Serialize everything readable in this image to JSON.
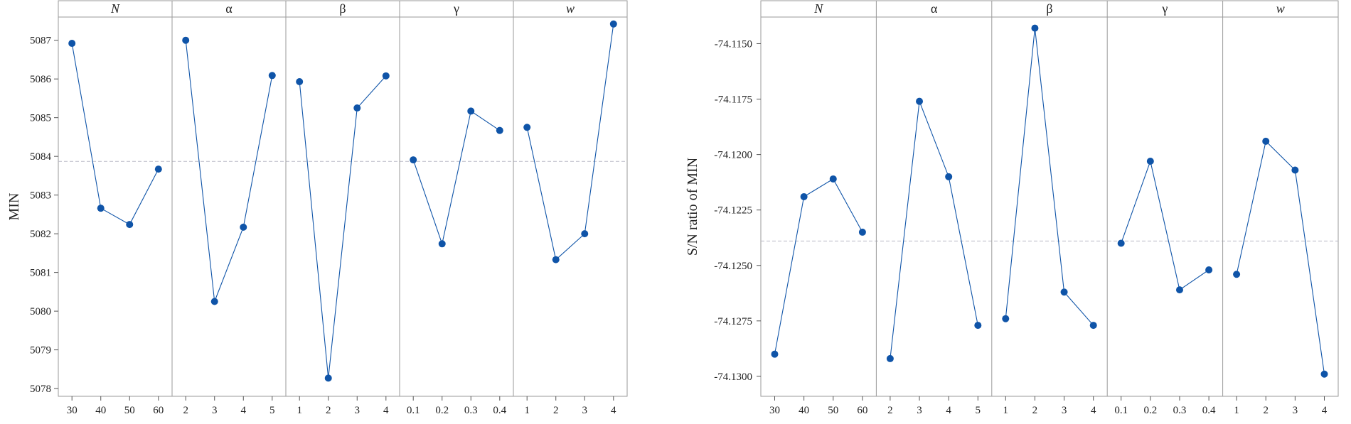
{
  "chart_data": [
    {
      "type": "line",
      "ylabel": "MIN",
      "ylim": [
        5077.8,
        5087.6
      ],
      "yticks": [
        5078,
        5079,
        5080,
        5081,
        5082,
        5083,
        5084,
        5085,
        5086,
        5087
      ],
      "mean_line": 5083.87,
      "colors": {
        "line": "#0f54a8",
        "mean": "#b9b9c6",
        "frame": "#9a9a9a"
      },
      "panels": [
        {
          "title": "N",
          "italic": true,
          "categories": [
            "30",
            "40",
            "50",
            "60"
          ],
          "values": [
            5086.92,
            5082.66,
            5082.24,
            5083.67
          ]
        },
        {
          "title": "α",
          "italic": false,
          "categories": [
            "2",
            "3",
            "4",
            "5"
          ],
          "values": [
            5087.0,
            5080.25,
            5082.17,
            5086.09
          ]
        },
        {
          "title": "β",
          "italic": false,
          "categories": [
            "1",
            "2",
            "3",
            "4"
          ],
          "values": [
            5085.93,
            5078.27,
            5085.25,
            5086.08
          ]
        },
        {
          "title": "γ",
          "italic": false,
          "categories": [
            "0.1",
            "0.2",
            "0.3",
            "0.4"
          ],
          "values": [
            5083.91,
            5081.74,
            5085.17,
            5084.67
          ]
        },
        {
          "title": "w",
          "italic": true,
          "categories": [
            "1",
            "2",
            "3",
            "4"
          ],
          "values": [
            5084.75,
            5081.33,
            5082.0,
            5087.42
          ]
        }
      ]
    },
    {
      "type": "line",
      "ylabel": "S/N ratio of MIN",
      "ylim": [
        -74.1309,
        -74.1138
      ],
      "yticks": [
        -74.13,
        -74.1275,
        -74.125,
        -74.1225,
        -74.12,
        -74.1175,
        -74.115
      ],
      "ytick_labels": [
        "-74.1300",
        "-74.1275",
        "-74.1250",
        "-74.1225",
        "-74.1200",
        "-74.1175",
        "-74.1150"
      ],
      "mean_line": -74.1239,
      "colors": {
        "line": "#0f54a8",
        "mean": "#b9b9c6",
        "frame": "#9a9a9a"
      },
      "panels": [
        {
          "title": "N",
          "italic": true,
          "categories": [
            "30",
            "40",
            "50",
            "60"
          ],
          "values": [
            -74.129,
            -74.1219,
            -74.1211,
            -74.1235
          ]
        },
        {
          "title": "α",
          "italic": false,
          "categories": [
            "2",
            "3",
            "4",
            "5"
          ],
          "values": [
            -74.1292,
            -74.1176,
            -74.121,
            -74.1277
          ]
        },
        {
          "title": "β",
          "italic": false,
          "categories": [
            "1",
            "2",
            "3",
            "4"
          ],
          "values": [
            -74.1274,
            -74.1143,
            -74.1262,
            -74.1277
          ]
        },
        {
          "title": "γ",
          "italic": false,
          "categories": [
            "0.1",
            "0.2",
            "0.3",
            "0.4"
          ],
          "values": [
            -74.124,
            -74.1203,
            -74.1261,
            -74.1252
          ]
        },
        {
          "title": "w",
          "italic": true,
          "categories": [
            "1",
            "2",
            "3",
            "4"
          ],
          "values": [
            -74.1254,
            -74.1194,
            -74.1207,
            -74.1299
          ]
        }
      ]
    }
  ]
}
